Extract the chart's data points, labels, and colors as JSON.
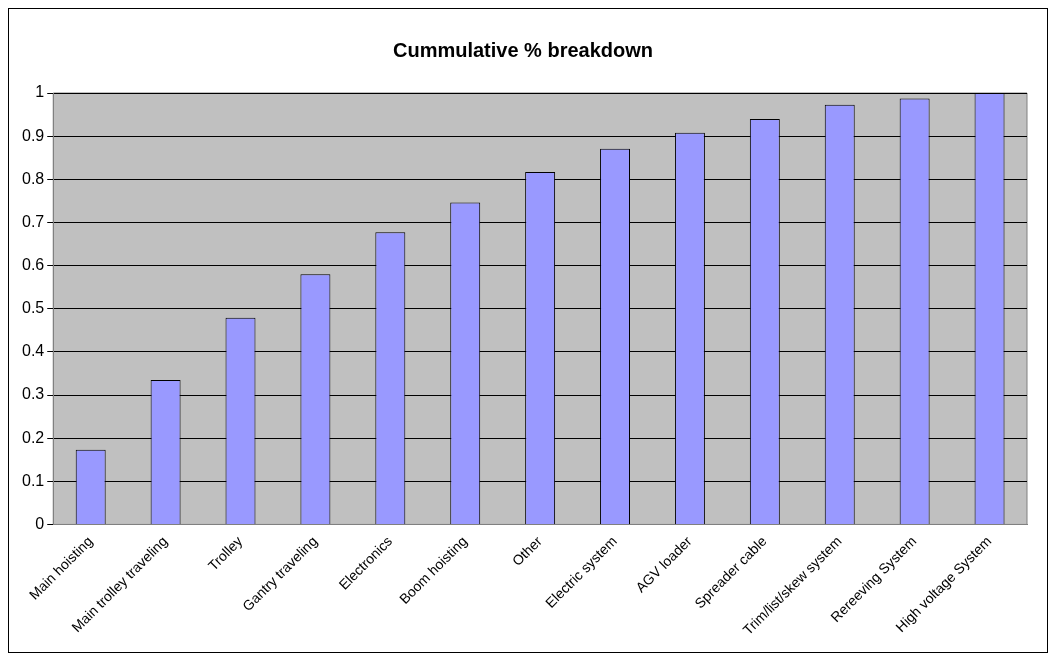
{
  "chart_data": {
    "type": "bar",
    "title": "Cummulative % breakdown",
    "categories": [
      "Main hoisting",
      "Main trolley traveling",
      "Trolley",
      "Gantry traveling",
      "Electronics",
      "Boom hoisting",
      "Other",
      "Electric system",
      "AGV loader",
      "Spreader cable",
      "Trim/list/skew system",
      "Rereeving System",
      "High voltage System"
    ],
    "values": [
      0.173,
      0.335,
      0.479,
      0.58,
      0.677,
      0.746,
      0.817,
      0.871,
      0.908,
      0.94,
      0.973,
      0.987,
      1
    ],
    "color": "#9999ff",
    "ylim": [
      0,
      1
    ],
    "yticks": [
      0,
      0.1,
      0.2,
      0.3,
      0.4,
      0.5,
      0.6,
      0.7,
      0.8,
      0.9,
      1
    ],
    "grid": "y",
    "legend": false
  }
}
